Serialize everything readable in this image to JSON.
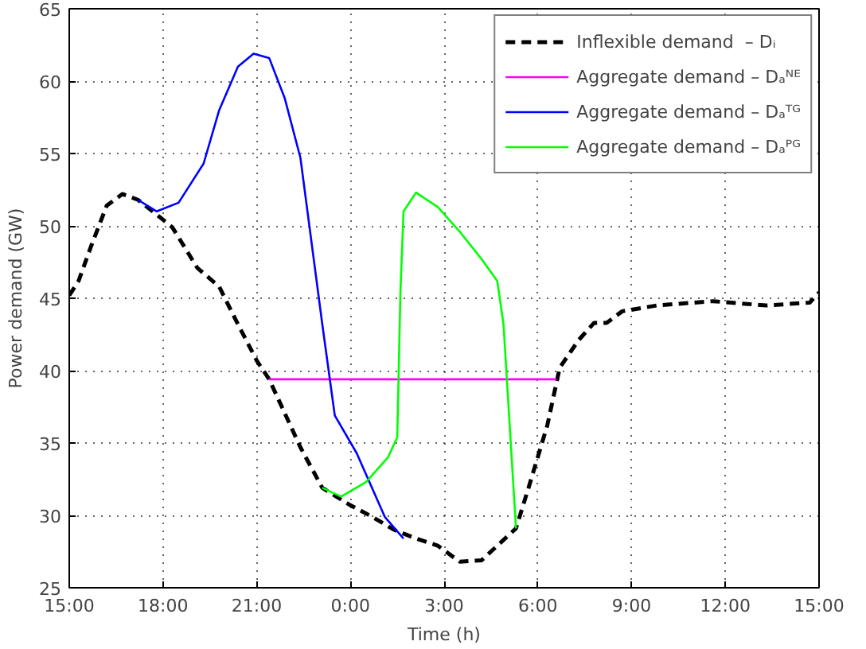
{
  "chart_data": {
    "type": "line",
    "xlabel": "Time (h)",
    "ylabel": "Power demand (GW)",
    "xlim": [
      "2000-01-01T15:00",
      "2000-01-02T15:00"
    ],
    "xticks": [
      {
        "value": "2000-01-01T15:00",
        "label": "15:00"
      },
      {
        "value": "2000-01-01T18:00",
        "label": "18:00"
      },
      {
        "value": "2000-01-01T21:00",
        "label": "21:00"
      },
      {
        "value": "2000-01-02T00:00",
        "label": "0:00"
      },
      {
        "value": "2000-01-02T03:00",
        "label": "3:00"
      },
      {
        "value": "2000-01-02T06:00",
        "label": "6:00"
      },
      {
        "value": "2000-01-02T09:00",
        "label": "9:00"
      },
      {
        "value": "2000-01-02T12:00",
        "label": "12:00"
      },
      {
        "value": "2000-01-02T15:00",
        "label": "15:00"
      }
    ],
    "ylim": [
      25,
      65
    ],
    "yticks": [
      25,
      30,
      35,
      40,
      45,
      50,
      55,
      60,
      65
    ],
    "grid": true,
    "legend": "top right",
    "series": [
      {
        "name": "Inflexible demand  – Dᵢ",
        "color": "#000000",
        "line_style": "dashed",
        "x": [
          "2000-01-01T15:00",
          "2000-01-01T15:18",
          "2000-01-01T15:42",
          "2000-01-01T16:12",
          "2000-01-01T16:42",
          "2000-01-01T17:12",
          "2000-01-01T17:54",
          "2000-01-01T18:18",
          "2000-01-01T19:06",
          "2000-01-01T19:48",
          "2000-01-01T20:24",
          "2000-01-01T21:00",
          "2000-01-01T21:24",
          "2000-01-01T22:24",
          "2000-01-01T23:06",
          "2000-01-02T00:00",
          "2000-01-02T00:42",
          "2000-01-02T01:24",
          "2000-01-02T02:06",
          "2000-01-02T02:48",
          "2000-01-02T03:30",
          "2000-01-02T04:12",
          "2000-01-02T05:18",
          "2000-01-02T05:42",
          "2000-01-02T06:18",
          "2000-01-02T06:42",
          "2000-01-02T07:18",
          "2000-01-02T07:48",
          "2000-01-02T08:12",
          "2000-01-02T08:42",
          "2000-01-02T09:48",
          "2000-01-02T11:36",
          "2000-01-02T13:18",
          "2000-01-02T14:42",
          "2000-01-02T15:00"
        ],
        "values": [
          45.2,
          46.2,
          48.6,
          51.4,
          52.2,
          51.8,
          50.6,
          49.9,
          47.1,
          45.8,
          43.2,
          40.7,
          39.4,
          34.7,
          31.9,
          30.7,
          29.9,
          29.0,
          28.4,
          27.9,
          26.8,
          26.9,
          29.1,
          31.9,
          36.2,
          40.2,
          42.1,
          43.3,
          43.3,
          44.1,
          44.5,
          44.8,
          44.5,
          44.7,
          45.4
        ]
      },
      {
        "name": "Aggregate demand – Dₐᴺᴱ",
        "color": "#ff00ff",
        "line_style": "solid",
        "x": [
          "2000-01-01T21:24",
          "2000-01-02T06:36"
        ],
        "values": [
          39.4,
          39.4
        ]
      },
      {
        "name": "Aggregate demand – Dₐᵀᴳ",
        "color": "#0000ff",
        "line_style": "solid",
        "x": [
          "2000-01-01T17:12",
          "2000-01-01T17:48",
          "2000-01-01T18:30",
          "2000-01-01T19:18",
          "2000-01-01T19:48",
          "2000-01-01T20:24",
          "2000-01-01T20:54",
          "2000-01-01T21:24",
          "2000-01-01T21:54",
          "2000-01-01T22:24",
          "2000-01-01T23:06",
          "2000-01-01T23:30",
          "2000-01-02T00:12",
          "2000-01-02T01:06",
          "2000-01-02T01:42"
        ],
        "values": [
          51.8,
          51.0,
          51.6,
          54.3,
          58.0,
          61.0,
          61.9,
          61.6,
          58.8,
          54.7,
          43.2,
          36.9,
          34.3,
          29.9,
          28.4
        ]
      },
      {
        "name": "Aggregate demand – Dₐᴾᴳ",
        "color": "#00ff00",
        "line_style": "solid",
        "x": [
          "2000-01-01T23:06",
          "2000-01-01T23:42",
          "2000-01-02T00:30",
          "2000-01-02T01:12",
          "2000-01-02T01:30",
          "2000-01-02T01:36",
          "2000-01-02T01:42",
          "2000-01-02T02:06",
          "2000-01-02T02:48",
          "2000-01-02T03:30",
          "2000-01-02T04:12",
          "2000-01-02T04:42",
          "2000-01-02T04:54",
          "2000-01-02T05:18"
        ],
        "values": [
          31.9,
          31.3,
          32.3,
          34.0,
          35.4,
          45.4,
          51.0,
          52.3,
          51.3,
          49.6,
          47.7,
          46.2,
          43.2,
          29.1
        ]
      }
    ]
  }
}
